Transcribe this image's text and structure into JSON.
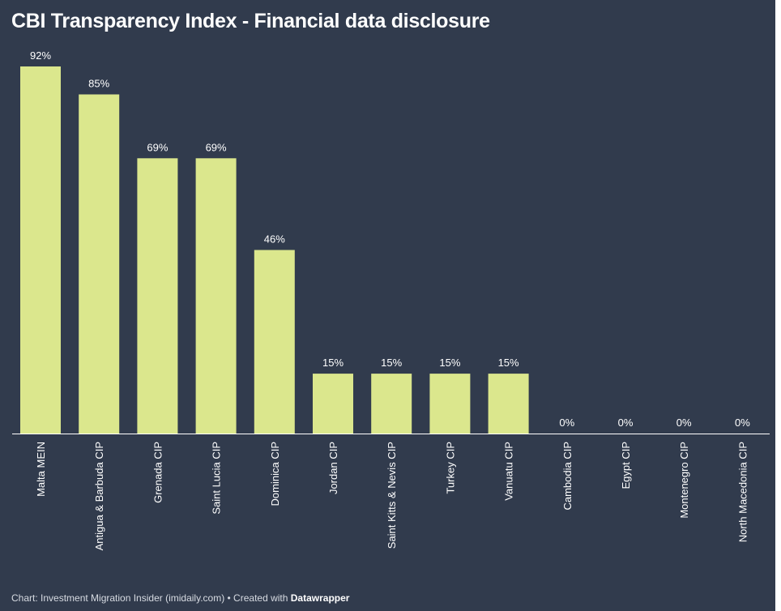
{
  "chart_data": {
    "type": "bar",
    "title": "CBI Transparency Index - Financial data disclosure",
    "xlabel": "",
    "ylabel": "",
    "ylim": [
      0,
      100
    ],
    "grid": false,
    "categories": [
      "Malta MEIN",
      "Antigua & Barbuda CIP",
      "Grenada CIP",
      "Saint Lucia CIP",
      "Dominica CIP",
      "Jordan CIP",
      "Saint Kitts & Nevis CIP",
      "Turkey CIP",
      "Vanuatu CIP",
      "Cambodia CIP",
      "Egypt CIP",
      "Montenegro CIP",
      "North Macedonia CIP"
    ],
    "values": [
      92,
      85,
      69,
      69,
      46,
      15,
      15,
      15,
      15,
      0,
      0,
      0,
      0
    ],
    "value_labels": [
      "92%",
      "85%",
      "69%",
      "69%",
      "46%",
      "15%",
      "15%",
      "15%",
      "15%",
      "0%",
      "0%",
      "0%",
      "0%"
    ],
    "colors": {
      "background": "#313b4d",
      "bar": "#dbe78d",
      "text": "#ffffff",
      "baseline": "#ffffff"
    }
  },
  "footer": {
    "source": "Chart: Investment Migration Insider (imidaily.com) • Created with ",
    "brand": "Datawrapper"
  }
}
